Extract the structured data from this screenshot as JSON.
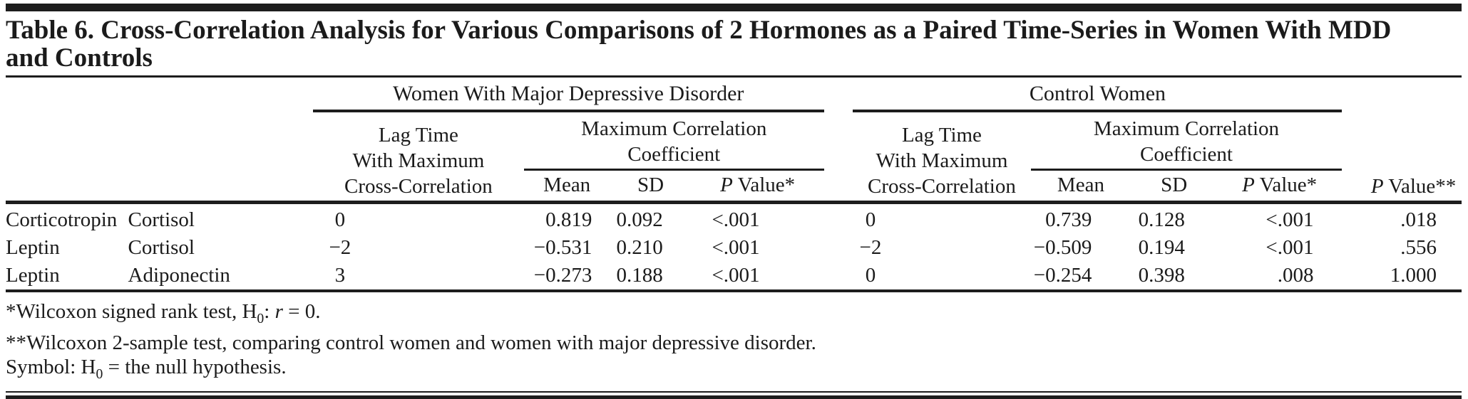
{
  "colors": {
    "background": "#ffffff",
    "text": "#1b1b1b",
    "rule": "#1d1d1d"
  },
  "title": {
    "lines": [
      "Table 6. Cross-Correlation Analysis for Various Comparisons of 2 Hormones as a Paired Time-Series in Women With MDD",
      "and Controls"
    ]
  },
  "table": {
    "groups": {
      "mdd": "Women With Major Depressive Disorder",
      "control": "Control Women"
    },
    "subheaders": {
      "lag_lines": [
        "Lag Time",
        "With Maximum",
        "Cross-Correlation"
      ],
      "max_corr_lines": [
        "Maximum Correlation",
        "Coefficient"
      ],
      "mean": "Mean",
      "sd": "SD",
      "p_within": [
        {
          "t": "P",
          "s": "i"
        },
        {
          "t": " Value*"
        }
      ],
      "p_between": [
        {
          "t": "P",
          "s": "i"
        },
        {
          "t": " Value**"
        }
      ]
    },
    "rows": [
      {
        "h1": "Corticotropin",
        "h2": "Cortisol",
        "mdd_lag": "0",
        "mdd_mean": "0.819",
        "mdd_sd": "0.092",
        "mdd_p": "<.001",
        "ctl_lag": "0",
        "ctl_mean": "0.739",
        "ctl_sd": "0.128",
        "ctl_p": "<.001",
        "p_between": ".018"
      },
      {
        "h1": "Leptin",
        "h2": "Cortisol",
        "mdd_lag": "−2",
        "mdd_mean": "−0.531",
        "mdd_sd": "0.210",
        "mdd_p": "<.001",
        "ctl_lag": "−2",
        "ctl_mean": "−0.509",
        "ctl_sd": "0.194",
        "ctl_p": "<.001",
        "p_between": ".556"
      },
      {
        "h1": "Leptin",
        "h2": "Adiponectin",
        "mdd_lag": "3",
        "mdd_mean": "−0.273",
        "mdd_sd": "0.188",
        "mdd_p": "<.001",
        "ctl_lag": "0",
        "ctl_mean": "−0.254",
        "ctl_sd": "0.398",
        "ctl_p": ".008",
        "p_between": "1.000"
      }
    ]
  },
  "footnotes": [
    [
      {
        "t": "*Wilcoxon signed rank test, H"
      },
      {
        "t": "0",
        "s": "sub"
      },
      {
        "t": ": "
      },
      {
        "t": "r",
        "s": "i"
      },
      {
        "t": " = 0."
      }
    ],
    [
      {
        "t": "**Wilcoxon 2-sample test, comparing control women and women with major depressive disorder."
      }
    ],
    [
      {
        "t": "Symbol: H"
      },
      {
        "t": "0",
        "s": "sub"
      },
      {
        "t": " = the null hypothesis."
      }
    ]
  ]
}
